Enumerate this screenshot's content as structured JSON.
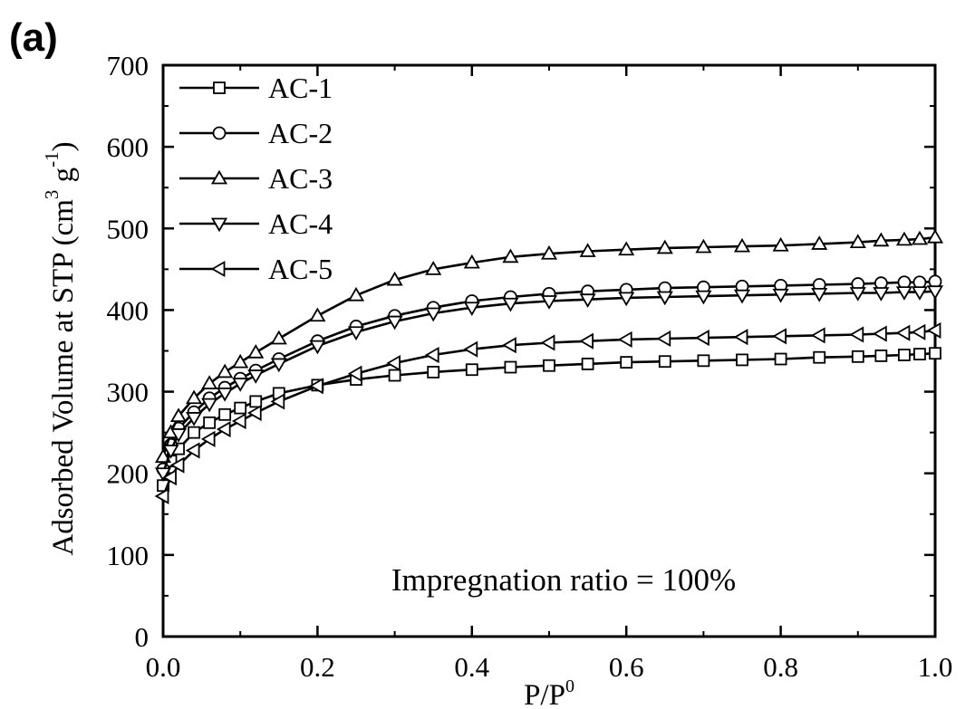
{
  "chart_data": {
    "type": "line",
    "panel_label": "(a)",
    "xlabel": "P/P",
    "xlabel_sup": "0",
    "ylabel_parts": [
      "Adsorbed Volume at STP (cm",
      "3",
      " g",
      "-1",
      ")"
    ],
    "xlim": [
      0.0,
      1.0
    ],
    "ylim": [
      0,
      700
    ],
    "xticks": [
      0.0,
      0.2,
      0.4,
      0.6,
      0.8,
      1.0
    ],
    "xtick_labels": [
      "0.0",
      "0.2",
      "0.4",
      "0.6",
      "0.8",
      "1.0"
    ],
    "yticks": [
      0,
      100,
      200,
      300,
      400,
      500,
      600,
      700
    ],
    "ytick_labels": [
      "0",
      "100",
      "200",
      "300",
      "400",
      "500",
      "600",
      "700"
    ],
    "legend_position": "top-left",
    "annotation": "Impregnation ratio = 100%",
    "grid": false,
    "series": [
      {
        "name": "AC-1",
        "marker": "square",
        "x": [
          0.0,
          0.01,
          0.02,
          0.04,
          0.06,
          0.08,
          0.1,
          0.12,
          0.15,
          0.2,
          0.25,
          0.3,
          0.35,
          0.4,
          0.45,
          0.5,
          0.55,
          0.6,
          0.65,
          0.7,
          0.75,
          0.8,
          0.85,
          0.9,
          0.93,
          0.96,
          0.98,
          1.0
        ],
        "y": [
          185,
          215,
          230,
          250,
          262,
          272,
          280,
          288,
          298,
          308,
          315,
          320,
          324,
          327,
          330,
          332,
          334,
          336,
          337,
          338,
          339,
          340,
          342,
          343,
          344,
          345,
          346,
          347
        ]
      },
      {
        "name": "AC-2",
        "marker": "circle",
        "x": [
          0.0,
          0.01,
          0.02,
          0.04,
          0.06,
          0.08,
          0.1,
          0.12,
          0.15,
          0.2,
          0.25,
          0.3,
          0.35,
          0.4,
          0.45,
          0.5,
          0.55,
          0.6,
          0.65,
          0.7,
          0.75,
          0.8,
          0.85,
          0.9,
          0.93,
          0.96,
          0.98,
          1.0
        ],
        "y": [
          205,
          235,
          255,
          275,
          292,
          305,
          316,
          326,
          340,
          362,
          380,
          393,
          403,
          411,
          416,
          420,
          423,
          425,
          427,
          428,
          429,
          430,
          431,
          432,
          433,
          434,
          434,
          435
        ]
      },
      {
        "name": "AC-3",
        "marker": "triangle-up",
        "x": [
          0.0,
          0.01,
          0.02,
          0.04,
          0.06,
          0.08,
          0.1,
          0.12,
          0.15,
          0.2,
          0.25,
          0.3,
          0.35,
          0.4,
          0.45,
          0.5,
          0.55,
          0.6,
          0.65,
          0.7,
          0.75,
          0.8,
          0.85,
          0.9,
          0.93,
          0.96,
          0.98,
          1.0
        ],
        "y": [
          220,
          250,
          270,
          292,
          310,
          324,
          336,
          348,
          365,
          393,
          418,
          437,
          450,
          458,
          465,
          469,
          472,
          474,
          476,
          477,
          478,
          479,
          481,
          483,
          485,
          486,
          487,
          489
        ]
      },
      {
        "name": "AC-4",
        "marker": "triangle-down",
        "x": [
          0.0,
          0.01,
          0.02,
          0.04,
          0.06,
          0.08,
          0.1,
          0.12,
          0.15,
          0.2,
          0.25,
          0.3,
          0.35,
          0.4,
          0.45,
          0.5,
          0.55,
          0.6,
          0.65,
          0.7,
          0.75,
          0.8,
          0.85,
          0.9,
          0.93,
          0.96,
          0.98,
          1.0
        ],
        "y": [
          200,
          228,
          248,
          268,
          285,
          298,
          310,
          320,
          334,
          356,
          373,
          386,
          396,
          403,
          408,
          411,
          413,
          415,
          416,
          417,
          418,
          419,
          420,
          421,
          421,
          422,
          422,
          423
        ]
      },
      {
        "name": "AC-5",
        "marker": "triangle-left",
        "x": [
          0.0,
          0.01,
          0.02,
          0.04,
          0.06,
          0.08,
          0.1,
          0.12,
          0.15,
          0.2,
          0.25,
          0.3,
          0.35,
          0.4,
          0.45,
          0.5,
          0.55,
          0.6,
          0.65,
          0.7,
          0.75,
          0.8,
          0.85,
          0.9,
          0.93,
          0.96,
          0.98,
          1.0
        ],
        "y": [
          172,
          195,
          210,
          228,
          242,
          254,
          264,
          274,
          288,
          307,
          322,
          335,
          345,
          352,
          357,
          360,
          362,
          364,
          365,
          366,
          367,
          368,
          369,
          370,
          371,
          372,
          373,
          375
        ]
      }
    ]
  }
}
